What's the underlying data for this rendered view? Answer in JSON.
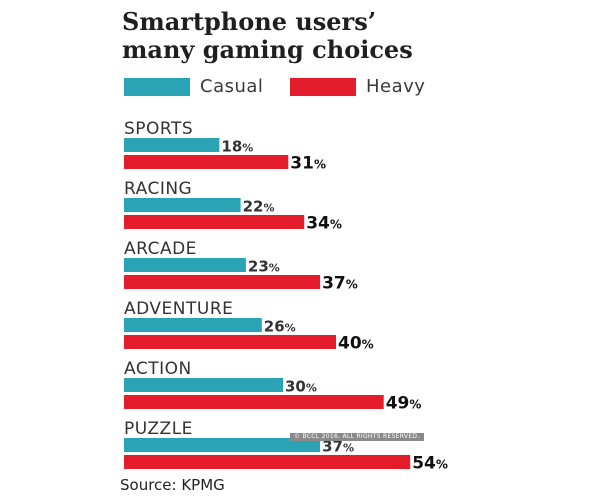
{
  "title_line1": "Smartphone users’",
  "title_line2": "many gaming choices",
  "source": "Source: KPMG",
  "watermark": "© BCCL 2016. ALL RIGHTS RESERVED.",
  "chart_data": {
    "type": "bar",
    "orientation": "horizontal",
    "title": "Smartphone users’ many gaming choices",
    "categories": [
      "SPORTS",
      "RACING",
      "ARCADE",
      "ADVENTURE",
      "ACTION",
      "PUZZLE"
    ],
    "series": [
      {
        "name": "Casual",
        "values": [
          18,
          22,
          23,
          26,
          30,
          37
        ],
        "color": "#2aa3b5"
      },
      {
        "name": "Heavy",
        "values": [
          31,
          34,
          37,
          40,
          49,
          54
        ],
        "color": "#e41d2d"
      }
    ],
    "value_suffix": "%",
    "xlabel": "",
    "ylabel": "",
    "grid": false,
    "legend_position": "top"
  }
}
